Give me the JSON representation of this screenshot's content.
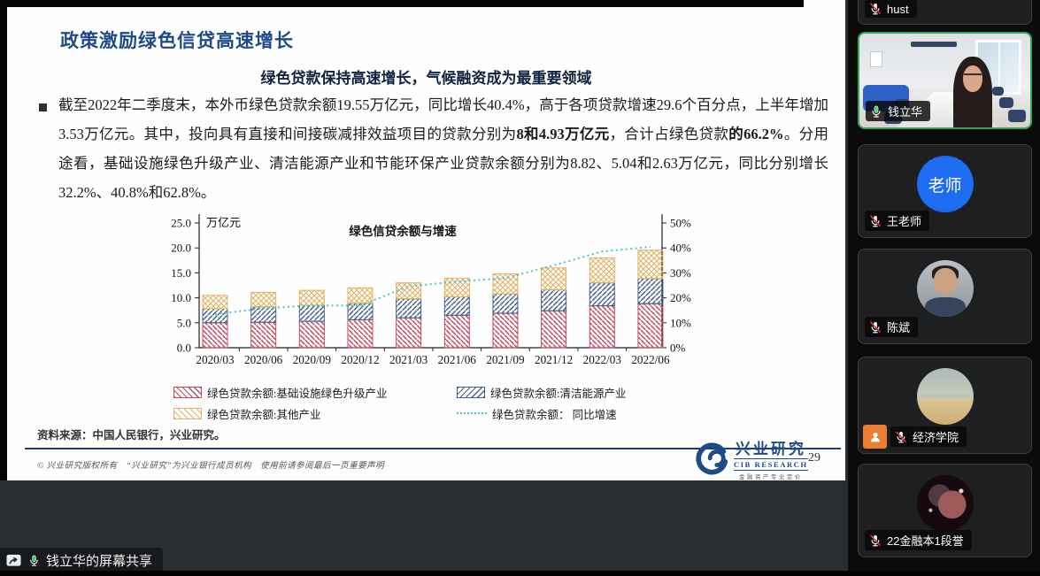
{
  "meeting": {
    "share_banner": {
      "label": "钱立华的屏幕共享"
    },
    "colors": {
      "active_speaker_border": "#2fa85c",
      "host_badge": "#ed7d31",
      "initial_avatar_blue": "#1d6cf2",
      "muted_slash_red": "#d63f3f",
      "mic_active_green": "#46d05e"
    },
    "participants": [
      {
        "name": "hust",
        "muted": true
      },
      {
        "name": "钱立华",
        "muted": false,
        "active_speaker": true,
        "video": true
      },
      {
        "name": "王老师",
        "muted": true,
        "avatar_text": "老师"
      },
      {
        "name": "陈斌",
        "muted": true
      },
      {
        "name": "经济学院",
        "muted": true,
        "host_badge": true
      },
      {
        "name": "22金融本1段誉",
        "muted": true
      }
    ]
  },
  "slide": {
    "title": "政策激励绿色信贷高速增长",
    "subtitle": "绿色贷款保持高速增长，气候融资成为最重要领域",
    "bullet_paragraph": [
      {
        "text": "截至2022年二季度末，本外币绿色贷款余额19.55万亿元，同比增长40.4%，高于各项贷款增速29.6个百分点，上半年增加3.53万亿元。其中，投向具有直接和间接碳减排效益项目的贷款分别为",
        "bold": false
      },
      {
        "text": "8和4.93万亿元",
        "bold": true
      },
      {
        "text": "，合计占绿色贷款",
        "bold": false
      },
      {
        "text": "的66.2%",
        "bold": true
      },
      {
        "text": "。分用途看，基础设施绿色升级产业、清洁能源产业和节能环保产业贷款余额分别为8.82、5.04和2.63万亿元，同比分别增长32.2%、40.8%和62.8%。",
        "bold": false
      }
    ],
    "source": "资料来源：中国人民银行，兴业研究。",
    "footer_disclaimer": "© 兴业研究版权所有　“兴业研究”为兴业银行成员机构　使用前请参阅最后一页重要声明",
    "logo": {
      "cn": "兴业研究",
      "en": "CIB RESEARCH",
      "tagline": "金融资产专业定价"
    },
    "page_number": "29"
  },
  "chart_data": {
    "type": "bar",
    "stacked": true,
    "title": "绿色信贷余额与增速",
    "unit_label": "万亿元",
    "grid": false,
    "legend_position": "bottom",
    "categories": [
      "2020/03",
      "2020/06",
      "2020/09",
      "2020/12",
      "2021/03",
      "2021/06",
      "2021/09",
      "2021/12",
      "2022/03",
      "2022/06"
    ],
    "series": [
      {
        "name": "绿色贷款余额:基础设施绿色升级产业",
        "color": "#c4495f",
        "hatch": "\\",
        "values": [
          5.0,
          5.1,
          5.3,
          5.6,
          6.0,
          6.5,
          6.9,
          7.4,
          8.4,
          8.82
        ]
      },
      {
        "name": "绿色贷款余额:清洁能源产业",
        "color": "#44608c",
        "hatch": "/",
        "values": [
          2.8,
          3.1,
          3.2,
          3.3,
          3.8,
          3.7,
          3.9,
          4.2,
          4.6,
          5.04
        ]
      },
      {
        "name": "绿色贷款余额:其他产业",
        "color": "#e2b264",
        "hatch": "x",
        "values": [
          2.7,
          2.9,
          3.0,
          3.1,
          3.2,
          3.7,
          4.0,
          4.4,
          5.0,
          5.69
        ]
      }
    ],
    "line_series": {
      "name": "绿色贷款余额： 同比增速",
      "color": "#45c6cb",
      "style": "dotted",
      "axis": "right",
      "values_pct": [
        13.4,
        15.8,
        16.9,
        16.9,
        24.6,
        26.5,
        27.9,
        33.0,
        38.6,
        40.4
      ]
    },
    "ylim_left": [
      0,
      25
    ],
    "yticks_left": [
      "0.0",
      "5.0",
      "10.0",
      "15.0",
      "20.0",
      "25.0"
    ],
    "ylim_right_pct": [
      0,
      50
    ],
    "yticks_right": [
      "0%",
      "10%",
      "20%",
      "30%",
      "40%",
      "50%"
    ]
  }
}
